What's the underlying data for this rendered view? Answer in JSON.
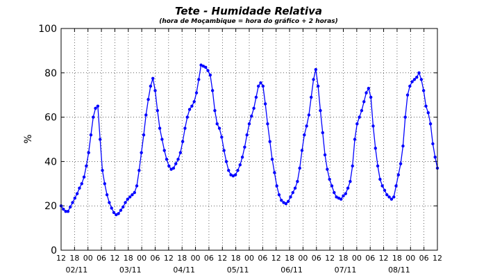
{
  "chart_data": {
    "type": "line",
    "title": "Tete - Humidade Relativa",
    "subtitle": "(hora de Moçambique = hora do gráfico + 2 horas)",
    "xlabel": "",
    "ylabel": "%",
    "ylim": [
      0,
      100
    ],
    "yticks": [
      "0",
      "20",
      "40",
      "60",
      "80",
      "100"
    ],
    "xlim_hours": [
      0,
      168
    ],
    "xticks": [
      "12",
      "18",
      "00",
      "06",
      "12",
      "18",
      "00",
      "06",
      "12",
      "18",
      "00",
      "06",
      "12",
      "18",
      "00",
      "06",
      "12",
      "18",
      "00",
      "06",
      "12",
      "18",
      "00",
      "06",
      "12",
      "18",
      "00",
      "06",
      "12"
    ],
    "date_labels": [
      {
        "label": "02/11",
        "at_hour": 6
      },
      {
        "label": "03/11",
        "at_hour": 30
      },
      {
        "label": "04/11",
        "at_hour": 54
      },
      {
        "label": "05/11",
        "at_hour": 78
      },
      {
        "label": "06/11",
        "at_hour": 102
      },
      {
        "label": "07/11",
        "at_hour": 126
      },
      {
        "label": "08/11",
        "at_hour": 150
      }
    ],
    "grid": true,
    "line_color": "#0000ff",
    "series": [
      {
        "values": [
          20,
          18.5,
          17.5,
          17.5,
          19.5,
          21.5,
          23.5,
          25.5,
          28,
          30,
          33,
          38,
          44,
          52,
          60,
          64,
          65,
          50,
          36,
          30,
          25,
          21.5,
          19,
          17,
          16,
          16.5,
          18,
          19.5,
          21.5,
          23,
          24,
          25,
          26,
          29,
          36,
          44,
          52,
          61,
          68,
          74,
          77.5,
          72,
          63,
          55,
          50,
          45,
          41,
          38,
          36.5,
          37,
          39,
          41,
          44,
          49,
          55,
          60,
          63.5,
          65,
          67,
          71,
          77,
          83.5,
          83,
          82.5,
          81,
          79,
          72,
          63,
          57,
          55,
          51,
          45,
          40,
          36,
          34,
          33.5,
          34,
          36,
          38.5,
          42,
          46.5,
          52,
          57,
          60.5,
          64,
          69,
          74,
          75.5,
          74,
          66,
          57,
          49,
          41,
          35,
          29,
          25,
          22.5,
          21.5,
          21,
          22,
          24,
          26,
          28,
          31,
          37,
          45,
          52,
          56,
          61,
          69,
          77,
          81.5,
          74,
          63,
          53,
          43,
          36.5,
          32,
          29,
          26,
          24,
          23.5,
          23,
          24.5,
          25.5,
          28,
          31,
          38,
          50,
          57,
          60,
          63,
          67,
          71,
          73,
          69,
          56,
          46,
          38,
          32,
          29,
          27,
          25,
          24,
          23,
          24,
          29,
          34,
          39,
          47,
          60,
          70,
          74,
          76,
          77,
          78,
          80,
          77,
          72,
          65,
          62,
          57,
          48,
          42,
          37
        ]
      }
    ]
  }
}
